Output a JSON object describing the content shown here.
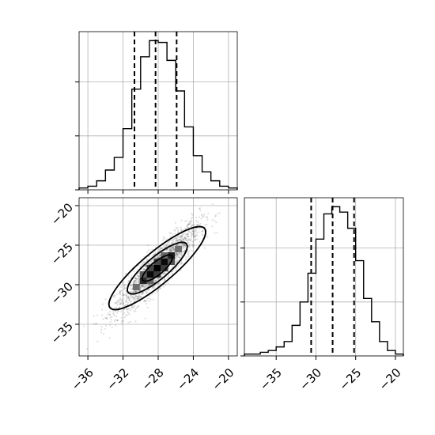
{
  "chart_data": [
    {
      "type": "histogram",
      "panel": "top-left",
      "variable_range": [
        -37,
        -19
      ],
      "bins": [
        -37,
        -36,
        -35,
        -34,
        -33,
        -32,
        -31,
        -30,
        -29,
        -28,
        -27,
        -26,
        -25,
        -24,
        -23,
        -22,
        -21,
        -20,
        -19
      ],
      "counts": [
        1,
        2,
        5,
        11,
        18,
        34,
        56,
        74,
        83,
        82,
        72,
        55,
        35,
        19,
        10,
        5,
        2,
        1
      ],
      "quantile_lines": [
        -30.7,
        -28.3,
        -25.9
      ],
      "xticks": [
        -36,
        -32,
        -28,
        -24,
        -20
      ],
      "xtick_labels": [
        "",
        "",
        "",
        "",
        ""
      ],
      "yticks": [
        0,
        30,
        60
      ],
      "grid": true
    },
    {
      "type": "histogram",
      "panel": "bottom-right",
      "variable_range": [
        -39,
        -19
      ],
      "bins": [
        -39,
        -38,
        -37,
        -36,
        -35,
        -34,
        -33,
        -32,
        -31,
        -30,
        -29,
        -28,
        -27,
        -26,
        -25,
        -24,
        -23,
        -22,
        -21,
        -20,
        -19
      ],
      "counts": [
        1,
        1,
        2,
        3,
        5,
        8,
        17,
        30,
        46,
        65,
        79,
        83,
        80,
        71,
        53,
        32,
        19,
        8,
        3,
        1
      ],
      "quantile_lines": [
        -30.6,
        -27.9,
        -25.2
      ],
      "xticks": [
        -35,
        -30,
        -25,
        -20
      ],
      "xtick_labels": [
        "−35",
        "−30",
        "−25",
        "−20"
      ],
      "yticks": [
        0,
        30,
        60
      ],
      "grid": true
    },
    {
      "type": "heatmap",
      "panel": "bottom-left",
      "x_range": [
        -37,
        -19
      ],
      "y_range": [
        -39,
        -19
      ],
      "xticks": [
        -36,
        -32,
        -28,
        -24,
        -20
      ],
      "xtick_labels": [
        "−36",
        "−32",
        "−28",
        "−24",
        "−20"
      ],
      "yticks": [
        -20,
        -25,
        -30,
        -35
      ],
      "ytick_labels": [
        "−20",
        "−25",
        "−30",
        "−35"
      ],
      "center": [
        -28.1,
        -27.9
      ],
      "correlation": 0.9,
      "cells": [
        {
          "x": -28.1,
          "y": -27.9,
          "shade": 0.0
        },
        {
          "x": -27.3,
          "y": -27.1,
          "shade": 0.05
        },
        {
          "x": -28.9,
          "y": -28.7,
          "shade": 0.05
        },
        {
          "x": -26.5,
          "y": -26.3,
          "shade": 0.15
        },
        {
          "x": -29.7,
          "y": -29.5,
          "shade": 0.2
        },
        {
          "x": -27.3,
          "y": -27.9,
          "shade": 0.3
        },
        {
          "x": -28.9,
          "y": -27.9,
          "shade": 0.35
        },
        {
          "x": -28.1,
          "y": -28.7,
          "shade": 0.3
        },
        {
          "x": -28.1,
          "y": -27.1,
          "shade": 0.35
        },
        {
          "x": -26.5,
          "y": -27.1,
          "shade": 0.4
        },
        {
          "x": -29.7,
          "y": -28.7,
          "shade": 0.45
        },
        {
          "x": -25.7,
          "y": -25.5,
          "shade": 0.55
        },
        {
          "x": -30.5,
          "y": -30.3,
          "shade": 0.55
        },
        {
          "x": -27.3,
          "y": -26.3,
          "shade": 0.5
        },
        {
          "x": -28.9,
          "y": -29.5,
          "shade": 0.5
        }
      ],
      "contours": [
        {
          "level_sigma": 0.5
        },
        {
          "level_sigma": 1.0
        },
        {
          "level_sigma": 1.5
        }
      ],
      "grid": true
    }
  ]
}
